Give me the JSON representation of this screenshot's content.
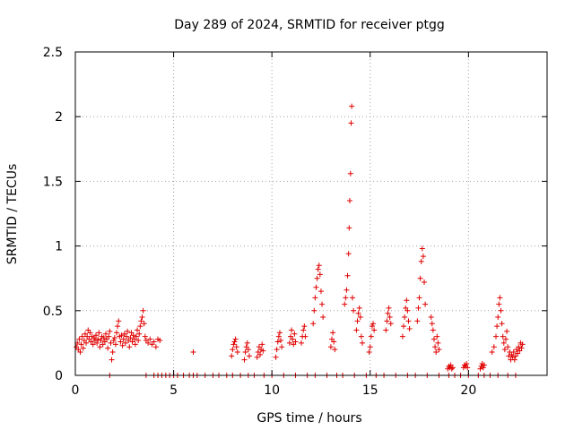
{
  "chart_data": {
    "type": "scatter",
    "title": "Day 289 of 2024, SRMTID for receiver ptgg",
    "xlabel": "GPS time / hours",
    "ylabel": "SRMTID / TECUs",
    "xlim": [
      0,
      24
    ],
    "ylim": [
      0,
      2.5
    ],
    "xticks": [
      0,
      5,
      10,
      15,
      20
    ],
    "xtick_labels": [
      "0",
      "5",
      "10",
      "15",
      "20"
    ],
    "yticks": [
      0,
      0.5,
      1,
      1.5,
      2,
      2.5
    ],
    "ytick_labels": [
      "0",
      "0.5",
      "1",
      "1.5",
      "2",
      "2.5"
    ],
    "grid": true,
    "marker": "plus",
    "color": "#e00000",
    "series": [
      {
        "name": "SRMTID",
        "points": [
          [
            0.05,
            0.22
          ],
          [
            0.1,
            0.25
          ],
          [
            0.15,
            0.2
          ],
          [
            0.2,
            0.28
          ],
          [
            0.25,
            0.18
          ],
          [
            0.3,
            0.24
          ],
          [
            0.35,
            0.3
          ],
          [
            0.4,
            0.21
          ],
          [
            0.45,
            0.27
          ],
          [
            0.5,
            0.32
          ],
          [
            0.55,
            0.25
          ],
          [
            0.6,
            0.3
          ],
          [
            0.65,
            0.35
          ],
          [
            0.7,
            0.28
          ],
          [
            0.75,
            0.33
          ],
          [
            0.8,
            0.26
          ],
          [
            0.85,
            0.3
          ],
          [
            0.9,
            0.24
          ],
          [
            0.95,
            0.29
          ],
          [
            1.0,
            0.27
          ],
          [
            1.05,
            0.31
          ],
          [
            1.1,
            0.25
          ],
          [
            1.15,
            0.28
          ],
          [
            1.2,
            0.33
          ],
          [
            1.25,
            0.22
          ],
          [
            1.3,
            0.27
          ],
          [
            1.35,
            0.3
          ],
          [
            1.4,
            0.24
          ],
          [
            1.45,
            0.29
          ],
          [
            1.5,
            0.26
          ],
          [
            1.55,
            0.32
          ],
          [
            1.6,
            0.28
          ],
          [
            1.65,
            0.21
          ],
          [
            1.7,
            0.3
          ],
          [
            1.75,
            0.34
          ],
          [
            1.8,
            0.25
          ],
          [
            1.85,
            0.12
          ],
          [
            1.9,
            0.18
          ],
          [
            1.95,
            0.27
          ],
          [
            2.0,
            0.29
          ],
          [
            2.05,
            0.24
          ],
          [
            2.1,
            0.33
          ],
          [
            2.15,
            0.38
          ],
          [
            2.2,
            0.42
          ],
          [
            2.25,
            0.3
          ],
          [
            2.3,
            0.26
          ],
          [
            2.35,
            0.31
          ],
          [
            2.4,
            0.23
          ],
          [
            2.45,
            0.28
          ],
          [
            2.5,
            0.32
          ],
          [
            2.55,
            0.25
          ],
          [
            2.6,
            0.3
          ],
          [
            2.65,
            0.34
          ],
          [
            2.7,
            0.27
          ],
          [
            2.75,
            0.22
          ],
          [
            2.8,
            0.29
          ],
          [
            2.85,
            0.33
          ],
          [
            2.9,
            0.26
          ],
          [
            2.95,
            0.31
          ],
          [
            3.0,
            0.28
          ],
          [
            3.05,
            0.24
          ],
          [
            3.1,
            0.3
          ],
          [
            3.15,
            0.35
          ],
          [
            3.2,
            0.27
          ],
          [
            3.25,
            0.32
          ],
          [
            3.3,
            0.38
          ],
          [
            3.35,
            0.42
          ],
          [
            3.4,
            0.45
          ],
          [
            3.45,
            0.5
          ],
          [
            3.5,
            0.4
          ],
          [
            3.55,
            0.3
          ],
          [
            3.6,
            0.27
          ],
          [
            3.7,
            0.25
          ],
          [
            3.8,
            0.28
          ],
          [
            3.9,
            0.24
          ],
          [
            4.0,
            0.26
          ],
          [
            4.1,
            0.22
          ],
          [
            4.2,
            0.28
          ],
          [
            4.3,
            0.27
          ],
          [
            6.0,
            0.18
          ],
          [
            7.95,
            0.15
          ],
          [
            8.0,
            0.2
          ],
          [
            8.05,
            0.24
          ],
          [
            8.1,
            0.26
          ],
          [
            8.15,
            0.28
          ],
          [
            8.2,
            0.22
          ],
          [
            8.25,
            0.18
          ],
          [
            8.6,
            0.12
          ],
          [
            8.65,
            0.18
          ],
          [
            8.7,
            0.22
          ],
          [
            8.75,
            0.25
          ],
          [
            8.8,
            0.2
          ],
          [
            8.85,
            0.15
          ],
          [
            9.25,
            0.14
          ],
          [
            9.3,
            0.18
          ],
          [
            9.35,
            0.22
          ],
          [
            9.4,
            0.16
          ],
          [
            9.45,
            0.2
          ],
          [
            9.5,
            0.24
          ],
          [
            9.55,
            0.19
          ],
          [
            10.2,
            0.14
          ],
          [
            10.25,
            0.2
          ],
          [
            10.3,
            0.26
          ],
          [
            10.35,
            0.3
          ],
          [
            10.4,
            0.33
          ],
          [
            10.45,
            0.27
          ],
          [
            10.5,
            0.22
          ],
          [
            10.9,
            0.25
          ],
          [
            10.95,
            0.3
          ],
          [
            11.0,
            0.35
          ],
          [
            11.05,
            0.28
          ],
          [
            11.1,
            0.24
          ],
          [
            11.15,
            0.32
          ],
          [
            11.2,
            0.26
          ],
          [
            11.5,
            0.25
          ],
          [
            11.55,
            0.3
          ],
          [
            11.6,
            0.35
          ],
          [
            11.65,
            0.38
          ],
          [
            11.7,
            0.3
          ],
          [
            12.1,
            0.4
          ],
          [
            12.15,
            0.5
          ],
          [
            12.2,
            0.6
          ],
          [
            12.25,
            0.68
          ],
          [
            12.3,
            0.75
          ],
          [
            12.35,
            0.82
          ],
          [
            12.4,
            0.85
          ],
          [
            12.45,
            0.78
          ],
          [
            12.5,
            0.65
          ],
          [
            12.55,
            0.55
          ],
          [
            12.6,
            0.45
          ],
          [
            13.0,
            0.22
          ],
          [
            13.05,
            0.28
          ],
          [
            13.1,
            0.33
          ],
          [
            13.15,
            0.26
          ],
          [
            13.2,
            0.2
          ],
          [
            13.7,
            0.55
          ],
          [
            13.75,
            0.6
          ],
          [
            13.8,
            0.66
          ],
          [
            13.85,
            0.77
          ],
          [
            13.9,
            0.94
          ],
          [
            13.93,
            1.14
          ],
          [
            13.96,
            1.35
          ],
          [
            14.0,
            1.56
          ],
          [
            14.03,
            1.95
          ],
          [
            14.06,
            2.08
          ],
          [
            14.1,
            0.6
          ],
          [
            14.15,
            0.5
          ],
          [
            14.3,
            0.35
          ],
          [
            14.35,
            0.42
          ],
          [
            14.4,
            0.48
          ],
          [
            14.45,
            0.52
          ],
          [
            14.5,
            0.45
          ],
          [
            14.55,
            0.3
          ],
          [
            14.6,
            0.25
          ],
          [
            14.95,
            0.18
          ],
          [
            15.0,
            0.22
          ],
          [
            15.05,
            0.3
          ],
          [
            15.1,
            0.38
          ],
          [
            15.15,
            0.4
          ],
          [
            15.2,
            0.35
          ],
          [
            15.8,
            0.35
          ],
          [
            15.85,
            0.42
          ],
          [
            15.9,
            0.48
          ],
          [
            15.95,
            0.52
          ],
          [
            16.0,
            0.45
          ],
          [
            16.05,
            0.4
          ],
          [
            16.65,
            0.3
          ],
          [
            16.7,
            0.38
          ],
          [
            16.75,
            0.45
          ],
          [
            16.8,
            0.52
          ],
          [
            16.85,
            0.58
          ],
          [
            16.9,
            0.5
          ],
          [
            16.95,
            0.42
          ],
          [
            17.0,
            0.36
          ],
          [
            17.4,
            0.42
          ],
          [
            17.45,
            0.52
          ],
          [
            17.5,
            0.6
          ],
          [
            17.55,
            0.75
          ],
          [
            17.6,
            0.88
          ],
          [
            17.65,
            0.98
          ],
          [
            17.7,
            0.92
          ],
          [
            17.75,
            0.72
          ],
          [
            17.8,
            0.55
          ],
          [
            18.1,
            0.45
          ],
          [
            18.15,
            0.4
          ],
          [
            18.2,
            0.35
          ],
          [
            18.25,
            0.28
          ],
          [
            18.3,
            0.22
          ],
          [
            18.35,
            0.18
          ],
          [
            18.4,
            0.3
          ],
          [
            18.45,
            0.25
          ],
          [
            18.5,
            0.2
          ],
          [
            18.95,
            0.05
          ],
          [
            19.0,
            0.07
          ],
          [
            19.05,
            0.06
          ],
          [
            19.1,
            0.08
          ],
          [
            19.15,
            0.05
          ],
          [
            19.2,
            0.06
          ],
          [
            19.75,
            0.06
          ],
          [
            19.8,
            0.08
          ],
          [
            19.85,
            0.07
          ],
          [
            19.9,
            0.09
          ],
          [
            19.95,
            0.06
          ],
          [
            20.6,
            0.05
          ],
          [
            20.65,
            0.07
          ],
          [
            20.7,
            0.09
          ],
          [
            20.75,
            0.06
          ],
          [
            20.8,
            0.08
          ],
          [
            21.2,
            0.18
          ],
          [
            21.3,
            0.22
          ],
          [
            21.4,
            0.3
          ],
          [
            21.45,
            0.38
          ],
          [
            21.5,
            0.45
          ],
          [
            21.55,
            0.55
          ],
          [
            21.6,
            0.6
          ],
          [
            21.65,
            0.5
          ],
          [
            21.7,
            0.4
          ],
          [
            21.75,
            0.3
          ],
          [
            21.8,
            0.25
          ],
          [
            21.85,
            0.2
          ],
          [
            21.9,
            0.28
          ],
          [
            21.95,
            0.34
          ],
          [
            22.0,
            0.22
          ],
          [
            22.05,
            0.15
          ],
          [
            22.1,
            0.18
          ],
          [
            22.15,
            0.12
          ],
          [
            22.2,
            0.16
          ],
          [
            22.25,
            0.14
          ],
          [
            22.3,
            0.18
          ],
          [
            22.35,
            0.12
          ],
          [
            22.4,
            0.15
          ],
          [
            22.45,
            0.2
          ],
          [
            22.5,
            0.17
          ],
          [
            22.55,
            0.22
          ],
          [
            22.6,
            0.19
          ],
          [
            22.65,
            0.25
          ],
          [
            22.7,
            0.21
          ],
          [
            22.75,
            0.24
          ],
          [
            1.75,
            0
          ],
          [
            3.6,
            0
          ],
          [
            4.0,
            0
          ],
          [
            4.2,
            0
          ],
          [
            4.4,
            0
          ],
          [
            4.6,
            0
          ],
          [
            4.8,
            0
          ],
          [
            5.0,
            0
          ],
          [
            5.2,
            0
          ],
          [
            5.5,
            0
          ],
          [
            5.8,
            0
          ],
          [
            6.0,
            0
          ],
          [
            6.2,
            0
          ],
          [
            6.6,
            0
          ],
          [
            7.0,
            0
          ],
          [
            7.3,
            0
          ],
          [
            7.7,
            0
          ],
          [
            8.0,
            0
          ],
          [
            8.4,
            0
          ],
          [
            8.8,
            0
          ],
          [
            9.1,
            0
          ],
          [
            9.6,
            0
          ],
          [
            10.0,
            0
          ],
          [
            10.6,
            0
          ],
          [
            11.2,
            0
          ],
          [
            11.8,
            0
          ],
          [
            12.2,
            0
          ],
          [
            12.8,
            0
          ],
          [
            13.3,
            0
          ],
          [
            13.6,
            0
          ],
          [
            14.2,
            0
          ],
          [
            14.8,
            0
          ],
          [
            15.3,
            0
          ],
          [
            15.7,
            0
          ],
          [
            16.3,
            0
          ],
          [
            16.9,
            0
          ],
          [
            17.3,
            0
          ],
          [
            17.9,
            0
          ],
          [
            18.5,
            0
          ],
          [
            19.0,
            0
          ],
          [
            19.3,
            0
          ],
          [
            19.6,
            0
          ],
          [
            20.0,
            0
          ],
          [
            20.5,
            0
          ],
          [
            20.8,
            0
          ],
          [
            21.1,
            0
          ],
          [
            21.5,
            0
          ],
          [
            22.0,
            0
          ],
          [
            22.4,
            0
          ]
        ]
      }
    ]
  }
}
